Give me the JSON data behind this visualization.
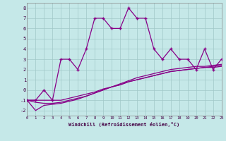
{
  "xlabel": "Windchill (Refroidissement éolien,°C)",
  "background_color": "#c5e8e8",
  "grid_color": "#a0c8c8",
  "line_color": "#880088",
  "xlim": [
    0,
    23
  ],
  "ylim": [
    -2.5,
    8.5
  ],
  "xticks": [
    0,
    1,
    2,
    3,
    4,
    5,
    6,
    7,
    8,
    9,
    10,
    11,
    12,
    13,
    14,
    15,
    16,
    17,
    18,
    19,
    20,
    21,
    22,
    23
  ],
  "yticks": [
    -2,
    -1,
    0,
    1,
    2,
    3,
    4,
    5,
    6,
    7,
    8
  ],
  "main_series_x": [
    0,
    1,
    2,
    3,
    4,
    5,
    6,
    7,
    8,
    9,
    10,
    11,
    12,
    13,
    14,
    15,
    16,
    17,
    18,
    19,
    20,
    21,
    22,
    23
  ],
  "main_series_y": [
    -1,
    -1,
    0,
    -1,
    3,
    3,
    2,
    4,
    7,
    7,
    6,
    6,
    8,
    7,
    7,
    4,
    3,
    4,
    3,
    3,
    2,
    4,
    2,
    3
  ],
  "line1_x": [
    0,
    1,
    2,
    3,
    4,
    5,
    6,
    7,
    8,
    9,
    10,
    11,
    12,
    13,
    14,
    15,
    16,
    17,
    18,
    19,
    20,
    21,
    22,
    23
  ],
  "line1_y": [
    -1,
    -1,
    -1,
    -1,
    -1,
    -0.8,
    -0.6,
    -0.4,
    -0.2,
    0.1,
    0.3,
    0.5,
    0.8,
    1.0,
    1.2,
    1.4,
    1.6,
    1.8,
    1.9,
    2.0,
    2.1,
    2.2,
    2.2,
    2.3
  ],
  "line2_x": [
    0,
    1,
    2,
    3,
    4,
    5,
    6,
    7,
    8,
    9,
    10,
    11,
    12,
    13,
    14,
    15,
    16,
    17,
    18,
    19,
    20,
    21,
    22,
    23
  ],
  "line2_y": [
    -1,
    -1.2,
    -1.3,
    -1.3,
    -1.2,
    -1.0,
    -0.8,
    -0.6,
    -0.3,
    0.0,
    0.3,
    0.5,
    0.8,
    1.0,
    1.2,
    1.4,
    1.6,
    1.8,
    1.9,
    2.0,
    2.1,
    2.2,
    2.3,
    2.4
  ],
  "line3_x": [
    0,
    1,
    2,
    3,
    4,
    5,
    6,
    7,
    8,
    9,
    10,
    11,
    12,
    13,
    14,
    15,
    16,
    17,
    18,
    19,
    20,
    21,
    22,
    23
  ],
  "line3_y": [
    -1,
    -2,
    -1.5,
    -1.4,
    -1.3,
    -1.1,
    -0.9,
    -0.6,
    -0.3,
    0.0,
    0.3,
    0.6,
    0.9,
    1.2,
    1.4,
    1.6,
    1.8,
    2.0,
    2.1,
    2.2,
    2.3,
    2.3,
    2.4,
    2.5
  ]
}
